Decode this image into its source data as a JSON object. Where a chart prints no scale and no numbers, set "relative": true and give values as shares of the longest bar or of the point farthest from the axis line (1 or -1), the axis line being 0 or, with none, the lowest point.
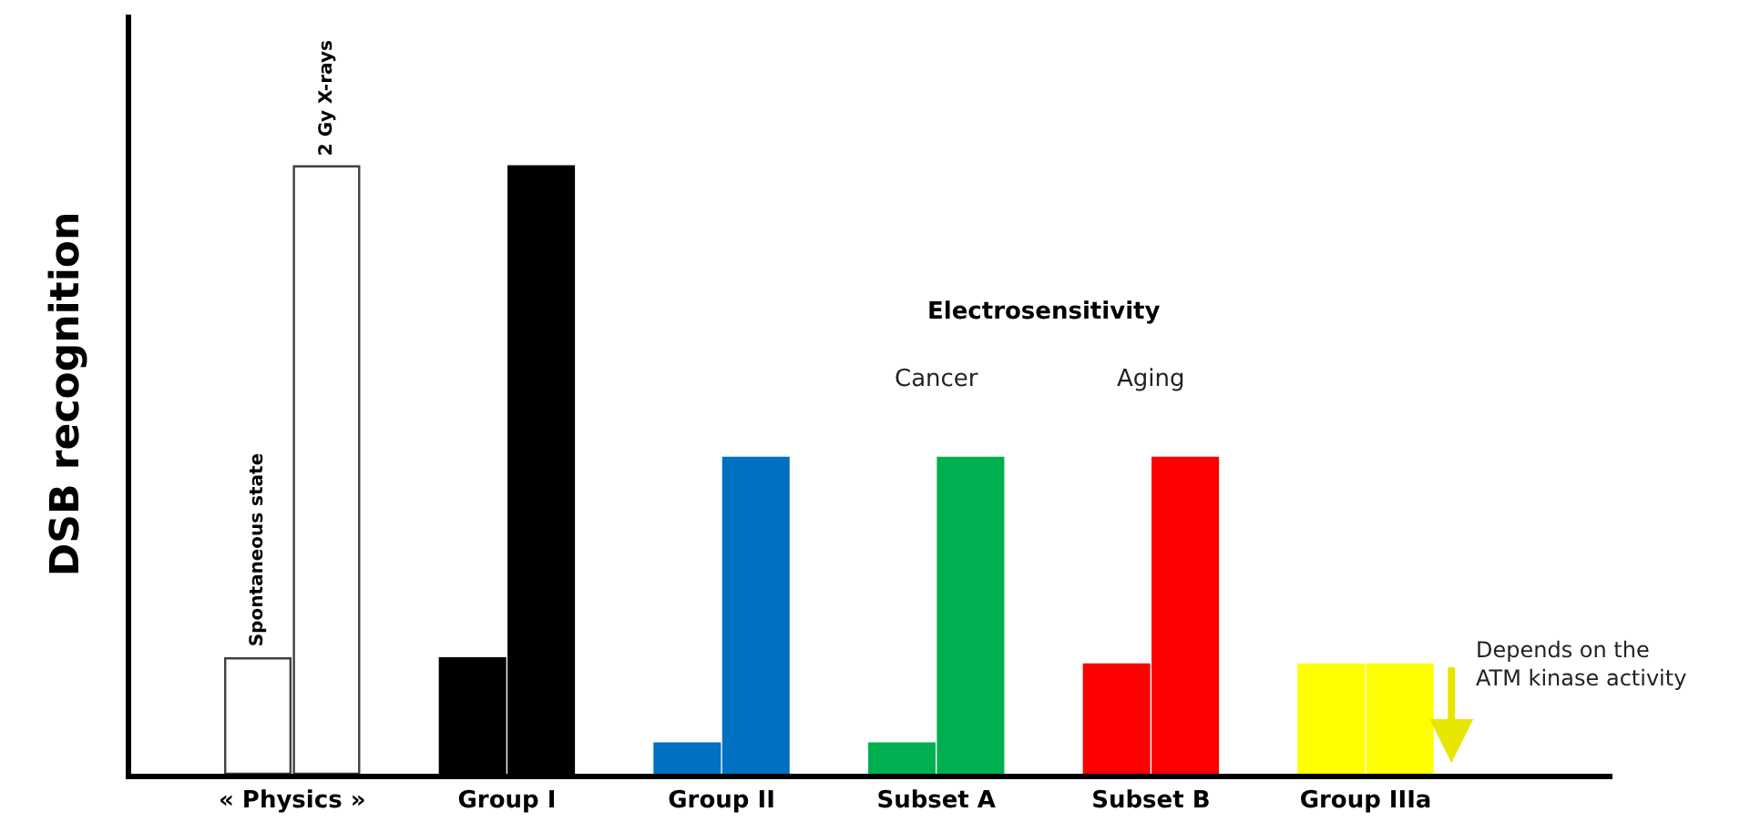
{
  "chart_data": {
    "type": "bar",
    "relative": true,
    "ylabel": "DSB recognition",
    "categories": [
      "« Physics »",
      "Group I",
      "Group II",
      "Subset A",
      "Subset B",
      "Group IIIa"
    ],
    "series": [
      {
        "name": "Spontaneous state",
        "colors": [
          "#ffffff",
          "#000000",
          "#0070c0",
          "#00b050",
          "#ff0000",
          "#ffff00"
        ],
        "values": [
          0.19,
          0.19,
          0.05,
          0.05,
          0.18,
          0.18
        ]
      },
      {
        "name": "2 Gy X-rays",
        "colors": [
          "#ffffff",
          "#000000",
          "#0070c0",
          "#00b050",
          "#ff0000",
          "#ffff00"
        ],
        "values": [
          1.0,
          1.0,
          0.52,
          0.52,
          0.52,
          0.18
        ]
      }
    ],
    "annotations": [
      "Electrosensitivity",
      "Cancer",
      "Aging",
      "Depends on the ATM kinase activity"
    ],
    "legend": false
  }
}
